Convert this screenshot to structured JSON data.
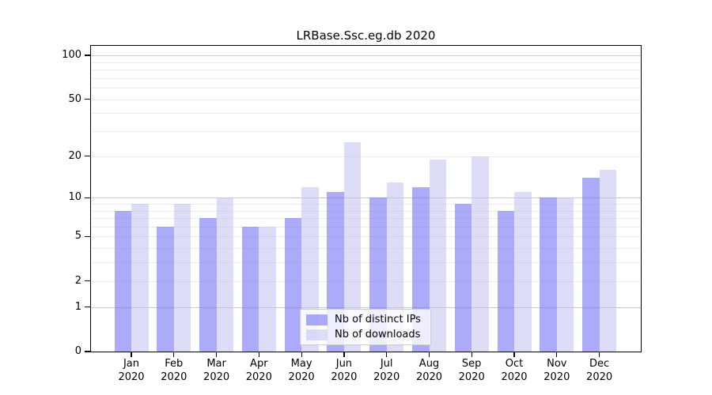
{
  "title": "LRBase.Ssc.eg.db 2020",
  "legend": {
    "items": [
      {
        "label": "Nb of distinct IPs"
      },
      {
        "label": "Nb of downloads"
      }
    ]
  },
  "colors": {
    "distinct_ips": "rgba(110,110,245,0.58)",
    "downloads": "rgba(190,190,242,0.52)",
    "major_grid": "#c8c8c8",
    "minor_grid": "#ececec",
    "axis": "#000000"
  },
  "chart_data": {
    "type": "bar",
    "title": "LRBase.Ssc.eg.db 2020",
    "categories": [
      "Jan 2020",
      "Feb 2020",
      "Mar 2020",
      "Apr 2020",
      "May 2020",
      "Jun 2020",
      "Jul 2020",
      "Aug 2020",
      "Sep 2020",
      "Oct 2020",
      "Nov 2020",
      "Dec 2020"
    ],
    "series": [
      {
        "name": "Nb of distinct IPs",
        "values": [
          8,
          6,
          7,
          6,
          7,
          11,
          10,
          12,
          9,
          8,
          10,
          14
        ]
      },
      {
        "name": "Nb of downloads",
        "values": [
          9,
          9,
          10,
          6,
          12,
          25,
          13,
          19,
          20,
          11,
          10,
          16
        ]
      }
    ],
    "xlabel": "",
    "ylabel": "",
    "yscale": "log1p",
    "ylim": [
      0,
      118
    ],
    "yticks": [
      0,
      1,
      2,
      5,
      10,
      20,
      50,
      100
    ],
    "major_gridlines": [
      1,
      10,
      100
    ],
    "minor_gridlines": [
      2,
      3,
      4,
      5,
      6,
      7,
      8,
      9,
      20,
      30,
      40,
      50,
      60,
      70,
      80,
      90
    ],
    "grid": true,
    "legend_position": "lower center"
  }
}
